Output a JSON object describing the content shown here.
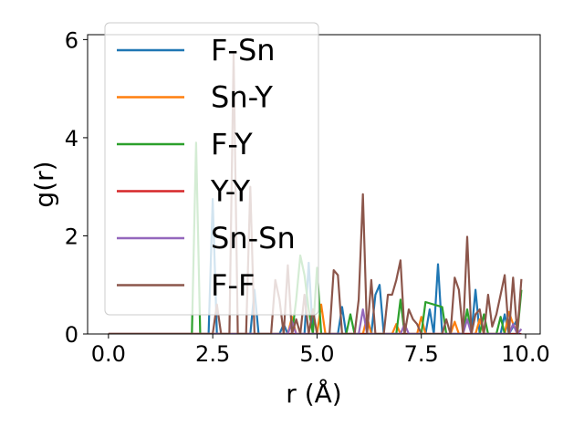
{
  "chart_data": {
    "type": "line",
    "title": "",
    "xlabel": "r (Å)",
    "ylabel": "g(r)",
    "xlim": [
      -0.5,
      10.35
    ],
    "ylim": [
      0,
      6.1
    ],
    "xticks": [
      0.0,
      2.5,
      5.0,
      7.5,
      10.0
    ],
    "xtick_labels": [
      "0.0",
      "2.5",
      "5.0",
      "7.5",
      "10.0"
    ],
    "yticks": [
      0,
      2,
      4,
      6
    ],
    "ytick_labels": [
      "0",
      "2",
      "4",
      "6"
    ],
    "grid": false,
    "legend_position": "upper-left",
    "series": [
      {
        "name": "F-Sn",
        "color": "#1f77b4",
        "points": [
          [
            0.0,
            0
          ],
          [
            2.4,
            0
          ],
          [
            2.5,
            2.75
          ],
          [
            2.6,
            0
          ],
          [
            3.4,
            0
          ],
          [
            3.5,
            0.9
          ],
          [
            3.6,
            0
          ],
          [
            4.1,
            0
          ],
          [
            4.2,
            0.2
          ],
          [
            4.3,
            0
          ],
          [
            4.7,
            0
          ],
          [
            4.8,
            1.45
          ],
          [
            4.9,
            0
          ],
          [
            5.5,
            0
          ],
          [
            5.6,
            0.55
          ],
          [
            5.7,
            0
          ],
          [
            6.3,
            0
          ],
          [
            6.4,
            0.8
          ],
          [
            6.5,
            1.0
          ],
          [
            6.6,
            0
          ],
          [
            7.6,
            0
          ],
          [
            7.7,
            0.5
          ],
          [
            7.8,
            0
          ],
          [
            7.9,
            1.42
          ],
          [
            8.0,
            0
          ],
          [
            8.7,
            0
          ],
          [
            8.8,
            0.9
          ],
          [
            8.9,
            0
          ],
          [
            9.4,
            0
          ],
          [
            9.5,
            0.4
          ],
          [
            9.6,
            0
          ],
          [
            9.8,
            0.3
          ]
        ]
      },
      {
        "name": "Sn-Y",
        "color": "#ff7f0e",
        "points": [
          [
            0.0,
            0
          ],
          [
            4.3,
            0
          ],
          [
            4.4,
            0.35
          ],
          [
            4.5,
            0
          ],
          [
            5.0,
            0
          ],
          [
            5.1,
            0.6
          ],
          [
            5.2,
            0
          ],
          [
            6.1,
            0
          ],
          [
            6.2,
            0.35
          ],
          [
            6.3,
            0
          ],
          [
            6.8,
            0
          ],
          [
            6.9,
            0.2
          ],
          [
            7.0,
            0
          ],
          [
            7.4,
            0
          ],
          [
            7.5,
            0.35
          ],
          [
            7.6,
            0
          ],
          [
            8.2,
            0
          ],
          [
            8.3,
            0.25
          ],
          [
            8.4,
            0
          ],
          [
            8.8,
            0
          ],
          [
            8.9,
            0.3
          ],
          [
            9.0,
            0
          ],
          [
            9.5,
            0
          ],
          [
            9.6,
            0.45
          ],
          [
            9.7,
            0.2
          ],
          [
            9.8,
            0.05
          ]
        ]
      },
      {
        "name": "F-Y",
        "color": "#2ca02c",
        "points": [
          [
            0.0,
            0
          ],
          [
            2.0,
            0
          ],
          [
            2.1,
            3.9
          ],
          [
            2.2,
            0
          ],
          [
            4.4,
            0
          ],
          [
            4.5,
            0.7
          ],
          [
            4.6,
            1.6
          ],
          [
            4.7,
            1.2
          ],
          [
            4.8,
            0.5
          ],
          [
            4.9,
            0
          ],
          [
            5.0,
            1.35
          ],
          [
            5.1,
            0
          ],
          [
            5.7,
            0
          ],
          [
            5.8,
            0.4
          ],
          [
            5.9,
            0
          ],
          [
            6.9,
            0
          ],
          [
            7.0,
            0.7
          ],
          [
            7.1,
            0
          ],
          [
            7.5,
            0
          ],
          [
            7.6,
            0.65
          ],
          [
            8.0,
            0.55
          ],
          [
            8.1,
            0
          ],
          [
            8.5,
            0
          ],
          [
            8.6,
            0.5
          ],
          [
            8.7,
            0
          ],
          [
            8.9,
            0
          ],
          [
            9.0,
            0.4
          ],
          [
            9.1,
            0
          ],
          [
            9.3,
            0
          ],
          [
            9.4,
            0.35
          ],
          [
            9.5,
            0
          ],
          [
            9.8,
            0
          ],
          [
            9.9,
            0.9
          ]
        ]
      },
      {
        "name": "Y-Y",
        "color": "#d62728",
        "points": [
          [
            0.0,
            0
          ],
          [
            9.9,
            0
          ]
        ]
      },
      {
        "name": "Sn-Sn",
        "color": "#9467bd",
        "points": [
          [
            0.0,
            0
          ],
          [
            4.3,
            0
          ],
          [
            4.4,
            0.25
          ],
          [
            4.5,
            0
          ],
          [
            6.0,
            0
          ],
          [
            6.1,
            0.5
          ],
          [
            6.2,
            0
          ],
          [
            7.0,
            0
          ],
          [
            7.1,
            0.2
          ],
          [
            7.2,
            0
          ],
          [
            8.5,
            0
          ],
          [
            8.6,
            0.3
          ],
          [
            8.7,
            0
          ],
          [
            9.6,
            0
          ],
          [
            9.7,
            0.2
          ],
          [
            9.8,
            0
          ],
          [
            9.9,
            0.1
          ]
        ]
      },
      {
        "name": "F-F",
        "color": "#8c564b",
        "points": [
          [
            0.0,
            0
          ],
          [
            2.5,
            0
          ],
          [
            2.6,
            0.6
          ],
          [
            2.7,
            0
          ],
          [
            2.9,
            0
          ],
          [
            3.0,
            5.7
          ],
          [
            3.1,
            0
          ],
          [
            3.3,
            0
          ],
          [
            3.4,
            3.0
          ],
          [
            3.5,
            0
          ],
          [
            3.9,
            0
          ],
          [
            4.0,
            1.1
          ],
          [
            4.1,
            0.7
          ],
          [
            4.2,
            0
          ],
          [
            4.3,
            1.4
          ],
          [
            4.4,
            0
          ],
          [
            4.5,
            0.3
          ],
          [
            4.6,
            0
          ],
          [
            4.7,
            0.8
          ],
          [
            4.8,
            0
          ],
          [
            4.9,
            0.5
          ],
          [
            5.0,
            0
          ],
          [
            5.3,
            0
          ],
          [
            5.4,
            1.3
          ],
          [
            5.5,
            1.2
          ],
          [
            5.6,
            0
          ],
          [
            5.9,
            0
          ],
          [
            6.0,
            0.7
          ],
          [
            6.1,
            2.85
          ],
          [
            6.2,
            0
          ],
          [
            6.3,
            1.1
          ],
          [
            6.4,
            0
          ],
          [
            6.6,
            0
          ],
          [
            6.7,
            0.8
          ],
          [
            6.8,
            0.8
          ],
          [
            6.9,
            1.1
          ],
          [
            7.0,
            1.5
          ],
          [
            7.1,
            0
          ],
          [
            7.2,
            0.5
          ],
          [
            7.3,
            0.3
          ],
          [
            7.4,
            0.2
          ],
          [
            7.5,
            0
          ],
          [
            8.0,
            0
          ],
          [
            8.1,
            0.3
          ],
          [
            8.2,
            0
          ],
          [
            8.3,
            1.15
          ],
          [
            8.4,
            0.9
          ],
          [
            8.5,
            0
          ],
          [
            8.6,
            1.98
          ],
          [
            8.7,
            0
          ],
          [
            8.8,
            0.4
          ],
          [
            8.9,
            0.5
          ],
          [
            9.0,
            0
          ],
          [
            9.1,
            0.8
          ],
          [
            9.2,
            0.15
          ],
          [
            9.3,
            0.4
          ],
          [
            9.4,
            0.8
          ],
          [
            9.5,
            1.2
          ],
          [
            9.6,
            0
          ],
          [
            9.7,
            1.15
          ],
          [
            9.8,
            0
          ],
          [
            9.9,
            1.12
          ]
        ]
      }
    ]
  }
}
